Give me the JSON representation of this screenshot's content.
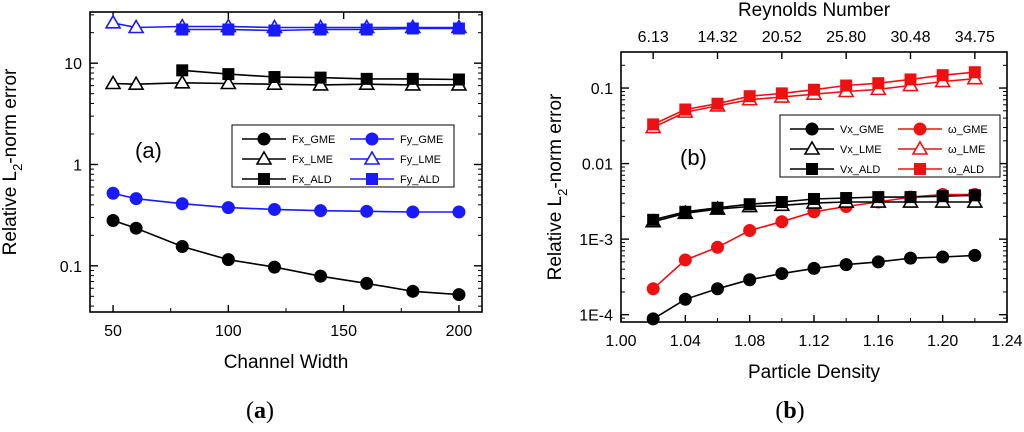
{
  "chart_data": [
    {
      "id": "a",
      "type": "line",
      "xlabel": "Channel Width",
      "ylabel": "Relative L2-norm error",
      "ylabel_main": "Relative L",
      "ylabel_sub": "2",
      "ylabel_rest": "-norm error",
      "xscale": "linear",
      "yscale": "log",
      "xlim": [
        40,
        210
      ],
      "ylim": [
        0.035,
        32
      ],
      "xticks": [
        50,
        100,
        150,
        200
      ],
      "yticks": [
        0.1,
        1,
        10
      ],
      "ytick_labels": [
        "0.1",
        "1",
        "10"
      ],
      "annotation": "(a)",
      "caption": "(a)",
      "legend_position": "right",
      "series": [
        {
          "name": "Fx_GME",
          "color": "#000000",
          "marker": "circle",
          "x": [
            50,
            60,
            80,
            100,
            120,
            140,
            160,
            180,
            200
          ],
          "values": [
            0.28,
            0.235,
            0.155,
            0.115,
            0.097,
            0.079,
            0.067,
            0.056,
            0.052
          ]
        },
        {
          "name": "Fy_GME",
          "color": "#1a1aff",
          "marker": "circle",
          "x": [
            50,
            60,
            80,
            100,
            120,
            140,
            160,
            180,
            200
          ],
          "values": [
            0.52,
            0.46,
            0.41,
            0.375,
            0.36,
            0.35,
            0.345,
            0.34,
            0.34
          ]
        },
        {
          "name": "Fx_LME",
          "color": "#000000",
          "marker": "triangle-open",
          "x": [
            50,
            60,
            80,
            100,
            120,
            140,
            160,
            180,
            200
          ],
          "values": [
            6.3,
            6.2,
            6.4,
            6.3,
            6.2,
            6.1,
            6.2,
            6.1,
            6.1
          ]
        },
        {
          "name": "Fy_LME",
          "color": "#1a1aff",
          "marker": "triangle-open",
          "x": [
            50,
            60,
            80,
            100,
            120,
            140,
            160,
            180,
            200
          ],
          "values": [
            25,
            22.5,
            23,
            23,
            22.5,
            22.5,
            22.5,
            22.5,
            22.5
          ]
        },
        {
          "name": "Fx_ALD",
          "color": "#000000",
          "marker": "square",
          "x": [
            80,
            100,
            120,
            140,
            160,
            180,
            200
          ],
          "values": [
            8.5,
            7.8,
            7.3,
            7.2,
            7.0,
            7.0,
            6.9
          ]
        },
        {
          "name": "Fy_ALD",
          "color": "#1a1aff",
          "marker": "square",
          "x": [
            80,
            100,
            120,
            140,
            160,
            180,
            200
          ],
          "values": [
            21.5,
            21.5,
            21.0,
            21.5,
            21.5,
            22.0,
            22.0
          ]
        }
      ]
    },
    {
      "id": "b",
      "type": "line",
      "xlabel": "Particle Density",
      "ylabel": "Relative L2-norm error",
      "ylabel_main": "Relative L",
      "ylabel_sub": "2",
      "ylabel_rest": "-norm error",
      "top_xlabel": "Reynolds Number",
      "xscale": "linear",
      "yscale": "log",
      "xlim": [
        1.0,
        1.24
      ],
      "ylim": [
        8e-05,
        0.3
      ],
      "xticks": [
        1.0,
        1.04,
        1.08,
        1.12,
        1.16,
        1.2,
        1.24
      ],
      "xtick_labels": [
        "1.00",
        "1.04",
        "1.08",
        "1.12",
        "1.16",
        "1.20",
        "1.24"
      ],
      "yticks": [
        0.0001,
        0.001,
        0.01,
        0.1
      ],
      "ytick_labels": [
        "1E-4",
        "1E-3",
        "0.01",
        "0.1"
      ],
      "top_xticks": [
        1.02,
        1.06,
        1.1,
        1.14,
        1.18,
        1.22
      ],
      "top_xtick_labels": [
        "6.13",
        "14.32",
        "20.52",
        "25.80",
        "30.48",
        "34.75"
      ],
      "annotation": "(b)",
      "caption": "(b)",
      "legend_position": "right",
      "series": [
        {
          "name": "Vx_GME",
          "color": "#000000",
          "marker": "circle",
          "x": [
            1.02,
            1.04,
            1.06,
            1.08,
            1.1,
            1.12,
            1.14,
            1.16,
            1.18,
            1.2,
            1.22
          ],
          "values": [
            8.8e-05,
            0.00016,
            0.00022,
            0.00029,
            0.00035,
            0.00041,
            0.00046,
            0.0005,
            0.00056,
            0.00058,
            0.00061
          ]
        },
        {
          "name": "ω_GME",
          "color": "#ee1111",
          "marker": "circle",
          "x": [
            1.02,
            1.04,
            1.06,
            1.08,
            1.1,
            1.12,
            1.14,
            1.16,
            1.18,
            1.2,
            1.22
          ],
          "values": [
            0.00022,
            0.00053,
            0.00078,
            0.0013,
            0.0017,
            0.0023,
            0.0027,
            0.0031,
            0.0036,
            0.0039,
            0.0039
          ]
        },
        {
          "name": "Vx_LME",
          "color": "#000000",
          "marker": "triangle-open",
          "x": [
            1.02,
            1.04,
            1.06,
            1.08,
            1.1,
            1.12,
            1.14,
            1.16,
            1.18,
            1.2,
            1.22
          ],
          "values": [
            0.0017,
            0.0022,
            0.0025,
            0.0027,
            0.0028,
            0.003,
            0.0031,
            0.0031,
            0.0031,
            0.0031,
            0.0031
          ]
        },
        {
          "name": "ω_LME",
          "color": "#ee1111",
          "marker": "triangle-open",
          "x": [
            1.02,
            1.04,
            1.06,
            1.08,
            1.1,
            1.12,
            1.14,
            1.16,
            1.18,
            1.2,
            1.22
          ],
          "values": [
            0.03,
            0.048,
            0.058,
            0.07,
            0.076,
            0.083,
            0.09,
            0.096,
            0.108,
            0.122,
            0.133
          ]
        },
        {
          "name": "Vx_ALD",
          "color": "#000000",
          "marker": "square",
          "x": [
            1.02,
            1.04,
            1.06,
            1.08,
            1.1,
            1.12,
            1.14,
            1.16,
            1.18,
            1.2,
            1.22
          ],
          "values": [
            0.0018,
            0.0023,
            0.0026,
            0.0029,
            0.0031,
            0.0034,
            0.0035,
            0.0036,
            0.0036,
            0.0037,
            0.0038
          ]
        },
        {
          "name": "ω_ALD",
          "color": "#ee1111",
          "marker": "square",
          "x": [
            1.02,
            1.04,
            1.06,
            1.08,
            1.1,
            1.12,
            1.14,
            1.16,
            1.18,
            1.2,
            1.22
          ],
          "values": [
            0.033,
            0.052,
            0.062,
            0.078,
            0.085,
            0.095,
            0.108,
            0.116,
            0.13,
            0.148,
            0.162
          ]
        }
      ]
    }
  ]
}
